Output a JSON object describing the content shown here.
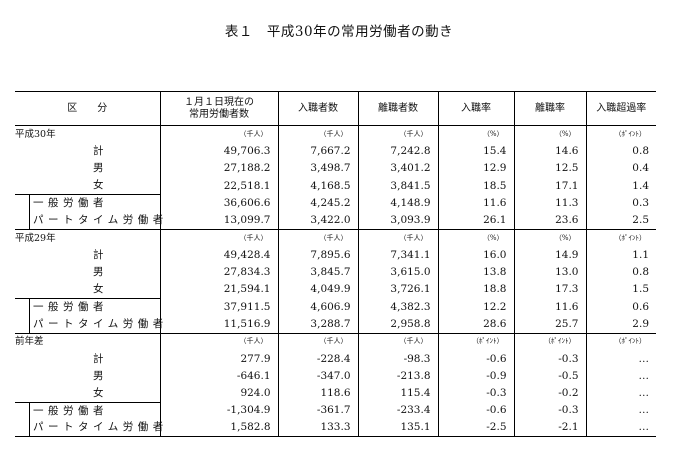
{
  "title": "表１　平成30年の常用労働者の動き",
  "headers": [
    "区　　分",
    "１月１日現在の\n常用労働者数",
    "入職者数",
    "離職者数",
    "入職率",
    "離職率",
    "入職超過率"
  ],
  "groups": [
    {
      "label": "平成30年",
      "units": [
        "（千人）",
        "（千人）",
        "（千人）",
        "（%）",
        "（%）",
        "（ﾎﾟｲﾝﾄ）"
      ],
      "rows": [
        {
          "label": "計",
          "values": [
            "49,706.3",
            "7,667.2",
            "7,242.8",
            "15.4",
            "14.6",
            "0.8"
          ]
        },
        {
          "label": "男",
          "values": [
            "27,188.2",
            "3,498.7",
            "3,401.2",
            "12.9",
            "12.5",
            "0.4"
          ]
        },
        {
          "label": "女",
          "values": [
            "22,518.1",
            "4,168.5",
            "3,841.5",
            "18.5",
            "17.1",
            "1.4"
          ]
        }
      ],
      "boxed": [
        {
          "label": "一般労働者",
          "values": [
            "36,606.6",
            "4,245.2",
            "4,148.9",
            "11.6",
            "11.3",
            "0.3"
          ]
        },
        {
          "label": "パートタイム労働者",
          "values": [
            "13,099.7",
            "3,422.0",
            "3,093.9",
            "26.1",
            "23.6",
            "2.5"
          ]
        }
      ]
    },
    {
      "label": "平成29年",
      "units": [
        "（千人）",
        "（千人）",
        "（千人）",
        "（%）",
        "（%）",
        "（ﾎﾟｲﾝﾄ）"
      ],
      "rows": [
        {
          "label": "計",
          "values": [
            "49,428.4",
            "7,895.6",
            "7,341.1",
            "16.0",
            "14.9",
            "1.1"
          ]
        },
        {
          "label": "男",
          "values": [
            "27,834.3",
            "3,845.7",
            "3,615.0",
            "13.8",
            "13.0",
            "0.8"
          ]
        },
        {
          "label": "女",
          "values": [
            "21,594.1",
            "4,049.9",
            "3,726.1",
            "18.8",
            "17.3",
            "1.5"
          ]
        }
      ],
      "boxed": [
        {
          "label": "一般労働者",
          "values": [
            "37,911.5",
            "4,606.9",
            "4,382.3",
            "12.2",
            "11.6",
            "0.6"
          ]
        },
        {
          "label": "パートタイム労働者",
          "values": [
            "11,516.9",
            "3,288.7",
            "2,958.8",
            "28.6",
            "25.7",
            "2.9"
          ]
        }
      ]
    },
    {
      "label": "前年差",
      "units": [
        "（千人）",
        "（千人）",
        "（千人）",
        "（ﾎﾟｲﾝﾄ）",
        "（ﾎﾟｲﾝﾄ）",
        "（ﾎﾟｲﾝﾄ）"
      ],
      "rows": [
        {
          "label": "計",
          "values": [
            "277.9",
            "-228.4",
            "-98.3",
            "-0.6",
            "-0.3",
            "…"
          ]
        },
        {
          "label": "男",
          "values": [
            "-646.1",
            "-347.0",
            "-213.8",
            "-0.9",
            "-0.5",
            "…"
          ]
        },
        {
          "label": "女",
          "values": [
            "924.0",
            "118.6",
            "115.4",
            "-0.3",
            "-0.2",
            "…"
          ]
        }
      ],
      "boxed": [
        {
          "label": "一般労働者",
          "values": [
            "-1,304.9",
            "-361.7",
            "-233.4",
            "-0.6",
            "-0.3",
            "…"
          ]
        },
        {
          "label": "パートタイム労働者",
          "values": [
            "1,582.8",
            "133.3",
            "135.1",
            "-2.5",
            "-2.1",
            "…"
          ]
        }
      ]
    }
  ]
}
